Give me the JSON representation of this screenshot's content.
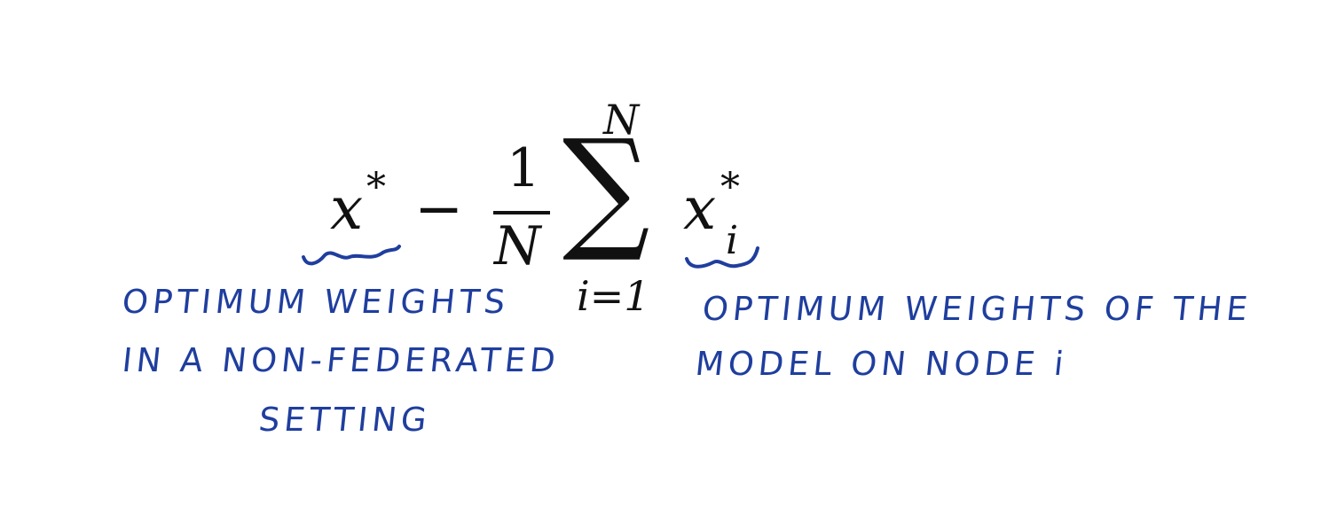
{
  "formula": {
    "lhs_var": "x",
    "lhs_sup": "*",
    "minus": "−",
    "frac_num": "1",
    "frac_den": "N",
    "sum_symbol": "∑",
    "sum_upper": "N",
    "sum_lower": "i=1",
    "term_var": "x",
    "term_sup": "*",
    "term_sub": "i"
  },
  "annotations": {
    "left": {
      "line1": "OPTIMUM   WEIGHTS",
      "line2": "IN A  NON-FEDERATED",
      "line3": "SETTING"
    },
    "right": {
      "line1": "OPTIMUM   WEIGHTS OF THE",
      "line2": "MODEL  ON  NODE  i"
    }
  },
  "colors": {
    "ink": "#1f3e9e",
    "math": "#111111",
    "background": "#ffffff"
  }
}
